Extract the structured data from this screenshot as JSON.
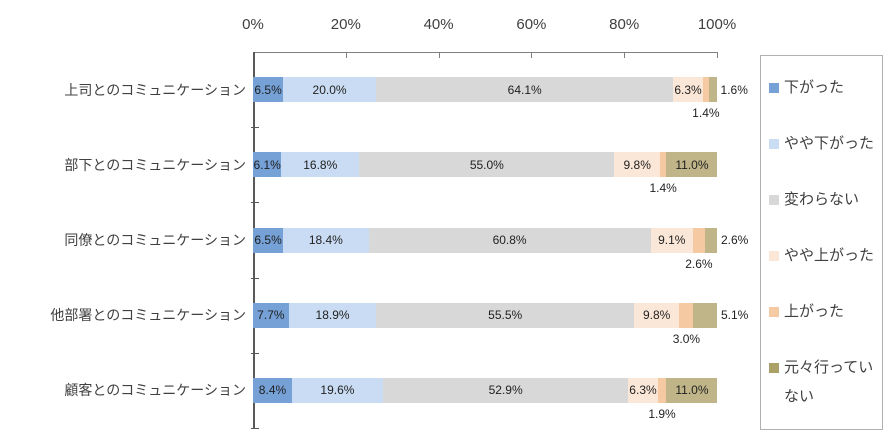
{
  "chart_data": {
    "type": "bar",
    "orientation": "horizontal",
    "stacked": true,
    "title": "",
    "categories": [
      "上司とのコミュニケーション",
      "部下とのコミュニケーション",
      "同僚とのコミュニケーション",
      "他部署とのコミュニケーション",
      "顧客とのコミュニケーション"
    ],
    "series": [
      {
        "name": "下がった",
        "color": "#76A1D6",
        "values": [
          6.5,
          6.1,
          6.5,
          7.7,
          8.4
        ],
        "label_mode": "inside"
      },
      {
        "name": "やや下がった",
        "color": "#C9DCF3",
        "values": [
          20.0,
          16.8,
          18.4,
          18.9,
          19.6
        ],
        "label_mode": "inside"
      },
      {
        "name": "変わらない",
        "color": "#D8D8D8",
        "values": [
          64.1,
          55.0,
          60.8,
          55.5,
          52.9
        ],
        "label_mode": "inside"
      },
      {
        "name": "やや上がった",
        "color": "#FBE7D8",
        "values": [
          6.3,
          9.8,
          9.1,
          9.8,
          6.3
        ],
        "label_mode": "inside"
      },
      {
        "name": "上がった",
        "color": "#F5C9A2",
        "values": [
          1.4,
          1.4,
          2.6,
          3.0,
          1.9
        ],
        "label_mode": "below"
      },
      {
        "name": "元々行っていない",
        "color": "#BFB588",
        "swatch_color": "#A9A166",
        "values": [
          1.6,
          11.0,
          2.6,
          5.1,
          11.0
        ],
        "label_mode": "auto"
      }
    ],
    "x_axis": {
      "position": "top",
      "min": 0,
      "max": 100,
      "tick_labels": [
        "0%",
        "20%",
        "40%",
        "60%",
        "80%",
        "100%"
      ]
    },
    "legend": {
      "position": "right"
    },
    "label_format": "percent_one_decimal"
  },
  "colors": {
    "top_axis_line": "#808080",
    "vertical_axis_line": "#595959",
    "axis_text": "#404040",
    "data_label_text": "#1f1f1f",
    "legend_border": "#b0b0b0",
    "background": "#ffffff"
  }
}
